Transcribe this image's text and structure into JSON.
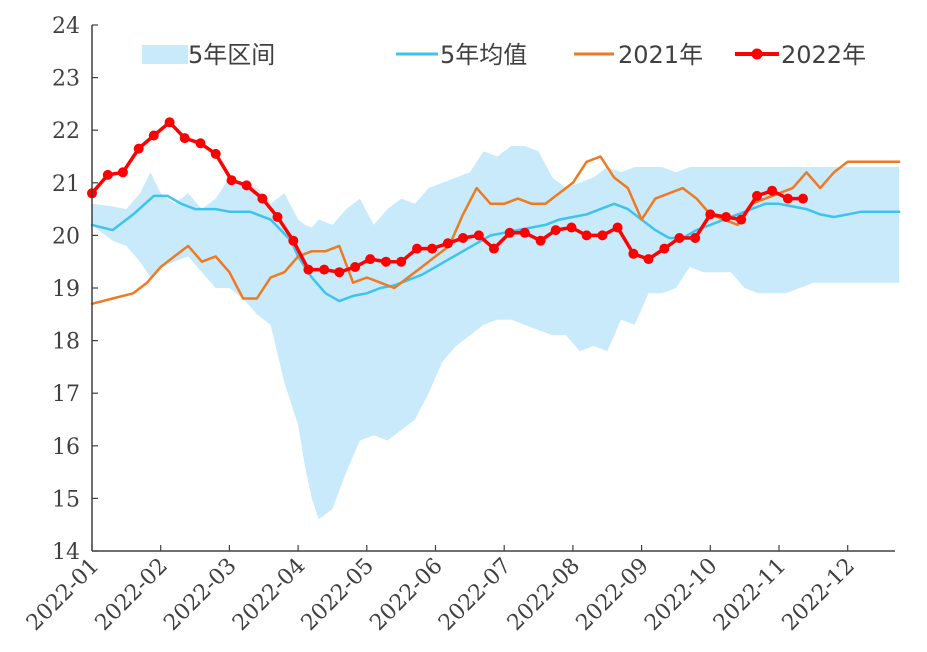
{
  "chart_data": {
    "type": "line",
    "title": "",
    "xlabel": "",
    "ylabel": "",
    "ylim": [
      14,
      24
    ],
    "yticks": [
      14,
      15,
      16,
      17,
      18,
      19,
      20,
      21,
      22,
      23,
      24
    ],
    "x_ticks": [
      "2022-01",
      "2022-02",
      "2022-03",
      "2022-04",
      "2022-05",
      "2022-06",
      "2022-07",
      "2022-08",
      "2022-09",
      "2022-10",
      "2022-11",
      "2022-12"
    ],
    "legend_position": "top",
    "colors": {
      "range": "#c9eafb",
      "avg": "#3ec3ef",
      "y2021": "#ee7a22",
      "y2022": "#ff0000"
    },
    "legend": {
      "range": "5年区间",
      "avg": "5年均值",
      "y2021": "2021年",
      "y2022": "2022年"
    },
    "series": [
      {
        "name": "5年区间",
        "kind": "band",
        "x": [
          0.0,
          0.3,
          0.5,
          0.7,
          0.85,
          1.0,
          1.2,
          1.4,
          1.6,
          1.8,
          2.0,
          2.2,
          2.4,
          2.6,
          2.8,
          3.0,
          3.1,
          3.2,
          3.3,
          3.5,
          3.7,
          3.9,
          4.1,
          4.3,
          4.5,
          4.7,
          4.9,
          5.1,
          5.3,
          5.5,
          5.7,
          5.9,
          6.1,
          6.3,
          6.5,
          6.7,
          6.9,
          7.1,
          7.3,
          7.5,
          7.7,
          7.9,
          8.1,
          8.3,
          8.5,
          8.7,
          8.9,
          9.1,
          9.3,
          9.5,
          9.7,
          9.9,
          10.1,
          10.3,
          10.5,
          10.7,
          10.9,
          11.1,
          11.3,
          11.5,
          11.75
        ],
        "upper": [
          20.6,
          20.55,
          20.5,
          20.8,
          21.2,
          20.8,
          20.6,
          20.8,
          20.5,
          20.7,
          21.1,
          21.0,
          20.9,
          20.6,
          20.8,
          20.3,
          20.2,
          20.15,
          20.3,
          20.2,
          20.5,
          20.7,
          20.2,
          20.5,
          20.7,
          20.6,
          20.9,
          21.0,
          21.1,
          21.2,
          21.6,
          21.5,
          21.7,
          21.7,
          21.6,
          21.1,
          20.9,
          21.0,
          21.1,
          21.3,
          21.2,
          21.3,
          21.3,
          21.3,
          21.2,
          21.3,
          21.3,
          21.3,
          21.3,
          21.3,
          21.3,
          21.3,
          21.3,
          21.3,
          21.3,
          21.3,
          21.3,
          21.3,
          21.3,
          21.3,
          21.3
        ],
        "lower": [
          20.2,
          19.9,
          19.8,
          19.5,
          19.2,
          19.4,
          19.5,
          19.6,
          19.3,
          19.0,
          19.0,
          18.8,
          18.5,
          18.3,
          17.2,
          16.4,
          15.6,
          15.0,
          14.6,
          14.8,
          15.5,
          16.1,
          16.2,
          16.1,
          16.3,
          16.5,
          17.0,
          17.6,
          17.9,
          18.1,
          18.3,
          18.4,
          18.4,
          18.3,
          18.2,
          18.1,
          18.1,
          17.8,
          17.9,
          17.8,
          18.4,
          18.3,
          18.9,
          18.9,
          19.0,
          19.4,
          19.3,
          19.3,
          19.3,
          19.0,
          18.9,
          18.9,
          18.9,
          19.0,
          19.1,
          19.1,
          19.1,
          19.1,
          19.1,
          19.1,
          19.1
        ]
      },
      {
        "name": "5年均值",
        "kind": "line",
        "x": [
          0.0,
          0.3,
          0.6,
          0.9,
          1.1,
          1.3,
          1.5,
          1.8,
          2.0,
          2.3,
          2.6,
          2.9,
          3.0,
          3.2,
          3.4,
          3.6,
          3.8,
          4.0,
          4.2,
          4.4,
          4.6,
          4.8,
          5.0,
          5.2,
          5.4,
          5.6,
          5.8,
          6.0,
          6.2,
          6.4,
          6.6,
          6.8,
          7.0,
          7.2,
          7.4,
          7.6,
          7.8,
          8.0,
          8.2,
          8.4,
          8.6,
          8.8,
          9.0,
          9.2,
          9.4,
          9.6,
          9.8,
          10.0,
          10.2,
          10.4,
          10.6,
          10.8,
          11.0,
          11.2,
          11.4,
          11.75
        ],
        "y": [
          20.2,
          20.1,
          20.4,
          20.75,
          20.75,
          20.6,
          20.5,
          20.5,
          20.45,
          20.45,
          20.3,
          19.9,
          19.6,
          19.2,
          18.9,
          18.75,
          18.85,
          18.9,
          19.0,
          19.05,
          19.15,
          19.25,
          19.4,
          19.55,
          19.7,
          19.85,
          20.0,
          20.05,
          20.1,
          20.15,
          20.2,
          20.3,
          20.35,
          20.4,
          20.5,
          20.6,
          20.5,
          20.3,
          20.1,
          19.95,
          19.95,
          20.1,
          20.2,
          20.3,
          20.4,
          20.5,
          20.6,
          20.6,
          20.55,
          20.5,
          20.4,
          20.35,
          20.4,
          20.45,
          20.45,
          20.45
        ]
      },
      {
        "name": "2021年",
        "kind": "line",
        "x": [
          0.0,
          0.3,
          0.6,
          0.8,
          1.0,
          1.2,
          1.4,
          1.6,
          1.8,
          2.0,
          2.2,
          2.4,
          2.6,
          2.8,
          3.0,
          3.2,
          3.4,
          3.6,
          3.8,
          4.0,
          4.2,
          4.4,
          4.6,
          4.8,
          5.0,
          5.2,
          5.4,
          5.6,
          5.8,
          6.0,
          6.2,
          6.4,
          6.6,
          6.8,
          7.0,
          7.2,
          7.4,
          7.6,
          7.8,
          8.0,
          8.2,
          8.4,
          8.6,
          8.8,
          9.0,
          9.2,
          9.4,
          9.6,
          9.8,
          10.0,
          10.2,
          10.4,
          10.6,
          10.8,
          11.0,
          11.2,
          11.4,
          11.6,
          11.75
        ],
        "y": [
          18.7,
          18.8,
          18.9,
          19.1,
          19.4,
          19.6,
          19.8,
          19.5,
          19.6,
          19.3,
          18.8,
          18.8,
          19.2,
          19.3,
          19.6,
          19.7,
          19.7,
          19.8,
          19.1,
          19.2,
          19.1,
          19.0,
          19.2,
          19.4,
          19.6,
          19.8,
          20.4,
          20.9,
          20.6,
          20.6,
          20.7,
          20.6,
          20.6,
          20.8,
          21.0,
          21.4,
          21.5,
          21.1,
          20.9,
          20.3,
          20.7,
          20.8,
          20.9,
          20.7,
          20.4,
          20.3,
          20.2,
          20.6,
          20.7,
          20.8,
          20.9,
          21.2,
          20.9,
          21.2,
          21.4,
          21.4,
          21.4,
          21.4,
          21.4
        ]
      },
      {
        "name": "2022年",
        "kind": "line-markers",
        "x": [
          0.0,
          0.23,
          0.45,
          0.68,
          0.9,
          1.13,
          1.35,
          1.58,
          1.8,
          2.03,
          2.25,
          2.48,
          2.7,
          2.93,
          3.15,
          3.38,
          3.6,
          3.83,
          4.05,
          4.28,
          4.5,
          4.73,
          4.95,
          5.18,
          5.4,
          5.63,
          5.85,
          6.08,
          6.3,
          6.53,
          6.75,
          6.98,
          7.2,
          7.43,
          7.65,
          7.88,
          8.1,
          8.33,
          8.55,
          8.78,
          9.0,
          9.23,
          9.45,
          9.68,
          9.9,
          10.13,
          10.35
        ],
        "y": [
          20.8,
          21.15,
          21.2,
          21.65,
          21.9,
          22.15,
          21.85,
          21.75,
          21.55,
          21.05,
          20.95,
          20.7,
          20.35,
          19.9,
          19.35,
          19.35,
          19.3,
          19.4,
          19.55,
          19.5,
          19.5,
          19.75,
          19.75,
          19.85,
          19.95,
          20.0,
          19.75,
          20.05,
          20.05,
          19.9,
          20.1,
          20.15,
          20.0,
          20.0,
          20.15,
          19.65,
          19.55,
          19.75,
          19.95,
          19.95,
          20.4,
          20.35,
          20.3,
          20.75,
          20.85,
          20.7,
          20.7
        ]
      }
    ]
  }
}
